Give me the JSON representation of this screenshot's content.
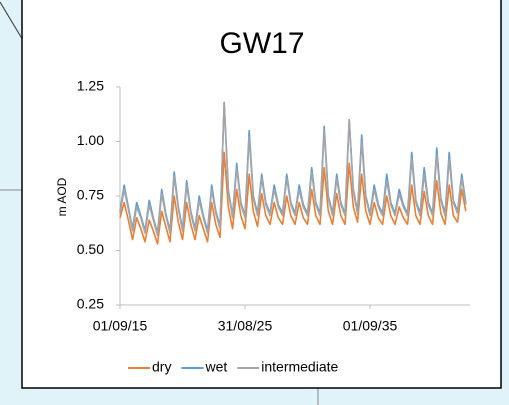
{
  "chart_data": {
    "type": "line",
    "title": "GW17",
    "ylabel": "m AOD",
    "x": [
      "01/09/15",
      "01/01/16",
      "01/05/16",
      "01/09/16",
      "01/01/17",
      "01/05/17",
      "01/09/17",
      "01/01/18",
      "01/05/18",
      "01/09/18",
      "01/01/19",
      "01/05/19",
      "01/09/19",
      "01/01/20",
      "01/05/20",
      "01/09/20",
      "01/01/21",
      "01/05/21",
      "01/09/21",
      "01/01/22",
      "01/05/22",
      "01/09/22",
      "01/01/23",
      "01/05/23",
      "01/09/23",
      "01/01/24",
      "01/05/24",
      "01/09/24",
      "01/01/25",
      "01/05/25",
      "01/09/25",
      "01/01/26",
      "01/05/26",
      "01/09/26",
      "01/01/27",
      "01/05/27",
      "01/09/27",
      "01/01/28",
      "01/05/28",
      "01/09/28",
      "01/01/29",
      "01/05/29",
      "01/09/29",
      "01/01/30",
      "01/05/30",
      "01/09/30",
      "01/01/31",
      "01/05/31",
      "01/09/31",
      "01/01/32",
      "01/05/32",
      "01/09/32",
      "01/01/33",
      "01/05/33",
      "01/09/33",
      "01/01/34",
      "01/05/34",
      "01/09/34",
      "01/01/35",
      "01/05/35",
      "01/09/35",
      "01/01/36",
      "01/05/36",
      "01/09/36",
      "01/01/37",
      "01/05/37",
      "01/09/37",
      "01/01/38",
      "01/05/38",
      "01/09/38",
      "01/01/39",
      "01/05/39",
      "01/09/39",
      "01/01/40",
      "01/05/40",
      "01/09/40",
      "01/01/41",
      "01/05/41",
      "01/09/41",
      "01/01/42",
      "01/05/42",
      "01/09/42",
      "01/01/43",
      "01/05/43"
    ],
    "series": [
      {
        "name": "dry",
        "color": "#ed7d31",
        "values": [
          0.65,
          0.72,
          0.64,
          0.55,
          0.65,
          0.6,
          0.54,
          0.64,
          0.59,
          0.53,
          0.68,
          0.61,
          0.54,
          0.75,
          0.63,
          0.55,
          0.72,
          0.62,
          0.55,
          0.66,
          0.6,
          0.54,
          0.72,
          0.62,
          0.56,
          0.95,
          0.7,
          0.6,
          0.78,
          0.66,
          0.6,
          0.85,
          0.68,
          0.61,
          0.76,
          0.66,
          0.62,
          0.72,
          0.65,
          0.62,
          0.75,
          0.66,
          0.62,
          0.72,
          0.65,
          0.62,
          0.78,
          0.66,
          0.62,
          0.88,
          0.68,
          0.62,
          0.76,
          0.66,
          0.62,
          0.9,
          0.7,
          0.63,
          0.85,
          0.68,
          0.62,
          0.72,
          0.65,
          0.62,
          0.75,
          0.66,
          0.62,
          0.7,
          0.65,
          0.62,
          0.8,
          0.66,
          0.62,
          0.77,
          0.66,
          0.62,
          0.82,
          0.67,
          0.62,
          0.8,
          0.66,
          0.63,
          0.78,
          0.68
        ]
      },
      {
        "name": "wet",
        "color": "#5b9bd5",
        "values": [
          0.68,
          0.8,
          0.7,
          0.6,
          0.72,
          0.66,
          0.59,
          0.73,
          0.65,
          0.58,
          0.78,
          0.67,
          0.59,
          0.86,
          0.7,
          0.6,
          0.82,
          0.68,
          0.6,
          0.75,
          0.66,
          0.59,
          0.8,
          0.68,
          0.61,
          1.18,
          0.78,
          0.66,
          0.9,
          0.72,
          0.66,
          1.05,
          0.75,
          0.67,
          0.85,
          0.72,
          0.67,
          0.8,
          0.71,
          0.67,
          0.85,
          0.72,
          0.67,
          0.8,
          0.71,
          0.67,
          0.88,
          0.72,
          0.67,
          1.07,
          0.75,
          0.67,
          0.85,
          0.72,
          0.67,
          1.1,
          0.78,
          0.68,
          1.03,
          0.75,
          0.67,
          0.8,
          0.71,
          0.67,
          0.85,
          0.72,
          0.67,
          0.78,
          0.71,
          0.67,
          0.95,
          0.73,
          0.67,
          0.88,
          0.72,
          0.67,
          0.97,
          0.74,
          0.67,
          0.95,
          0.73,
          0.68,
          0.85,
          0.72
        ]
      },
      {
        "name": "intermediate",
        "color": "#a5a5a5",
        "values": [
          0.67,
          0.78,
          0.69,
          0.59,
          0.7,
          0.65,
          0.58,
          0.71,
          0.64,
          0.57,
          0.76,
          0.66,
          0.58,
          0.84,
          0.69,
          0.59,
          0.8,
          0.67,
          0.59,
          0.73,
          0.65,
          0.58,
          0.78,
          0.67,
          0.6,
          1.18,
          0.77,
          0.65,
          0.88,
          0.71,
          0.65,
          1.02,
          0.74,
          0.66,
          0.83,
          0.71,
          0.66,
          0.78,
          0.7,
          0.66,
          0.83,
          0.71,
          0.66,
          0.78,
          0.7,
          0.66,
          0.86,
          0.71,
          0.66,
          1.05,
          0.74,
          0.66,
          0.83,
          0.71,
          0.66,
          1.1,
          0.77,
          0.67,
          1.0,
          0.74,
          0.66,
          0.78,
          0.7,
          0.66,
          0.82,
          0.71,
          0.66,
          0.76,
          0.7,
          0.66,
          0.92,
          0.72,
          0.66,
          0.85,
          0.71,
          0.66,
          0.94,
          0.73,
          0.66,
          0.92,
          0.72,
          0.67,
          0.83,
          0.71
        ]
      }
    ],
    "xlim": [
      "01/09/15",
      "31/08/43"
    ],
    "xticks": [
      "01/09/15",
      "31/08/25",
      "01/09/35"
    ],
    "ylim": [
      0.25,
      1.25
    ],
    "yticks": [
      {
        "value": 0.25,
        "label": "0.25"
      },
      {
        "value": 0.5,
        "label": "0.50"
      },
      {
        "value": 0.75,
        "label": "0.75"
      },
      {
        "value": 1.0,
        "label": "1.00"
      },
      {
        "value": 1.25,
        "label": "1.25"
      }
    ],
    "grid": false,
    "legend": "bottom"
  }
}
